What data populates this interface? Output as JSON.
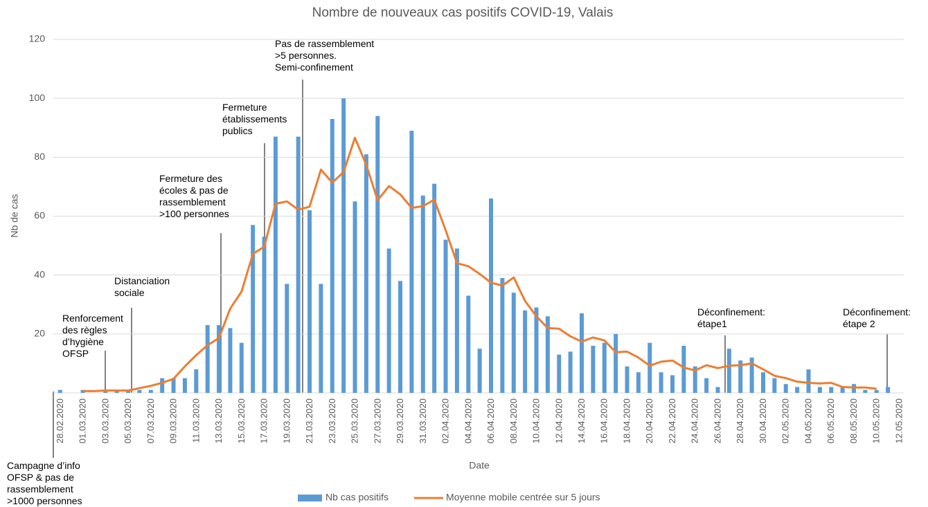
{
  "chart_data": {
    "type": "bar",
    "title": "Nombre de nouveaux cas positifs COVID-19, Valais",
    "x_label": "Date",
    "y_label": "Nb de cas",
    "categories": [
      "28.02.2020",
      null,
      "01.03.2020",
      null,
      "03.03.2020",
      null,
      "05.03.2020",
      null,
      "07.03.2020",
      null,
      "09.03.2020",
      null,
      "11.03.2020",
      null,
      "13.03.2020",
      null,
      "15.03.2020",
      null,
      "17.03.2020",
      null,
      "19.03.2020",
      null,
      "21.03.2020",
      null,
      "23.03.2020",
      null,
      "25.03.2020",
      null,
      "27.03.2020",
      null,
      "29.03.2020",
      null,
      "31.03.2020",
      null,
      "02.04.2020",
      null,
      "04.04.2020",
      null,
      "06.04.2020",
      null,
      "08.04.2020",
      null,
      "10.04.2020",
      null,
      "12.04.2020",
      null,
      "14.04.2020",
      null,
      "16.04.2020",
      null,
      "18.04.2020",
      null,
      "20.04.2020",
      null,
      "22.04.2020",
      null,
      "24.04.2020",
      null,
      "26.04.2020",
      null,
      "28.04.2020",
      null,
      "30.04.2020",
      null,
      "02.05.2020",
      null,
      "04.05.2020",
      null,
      "06.05.2020",
      null,
      "08.05.2020",
      null,
      "10.05.2020",
      null,
      "12.05.2020"
    ],
    "series": [
      {
        "name": "Nb cas positifs",
        "type": "bar",
        "color": "#5b9bd5",
        "values": [
          1,
          0,
          1,
          0,
          1,
          1,
          1,
          1,
          1,
          5,
          5,
          5,
          8,
          23,
          23,
          22,
          17,
          57,
          53,
          87,
          37,
          87,
          62,
          37,
          93,
          100,
          65,
          81,
          94,
          49,
          38,
          89,
          67,
          71,
          52,
          49,
          33,
          15,
          66,
          39,
          34,
          28,
          29,
          26,
          13,
          14,
          27,
          16,
          17,
          20,
          9,
          7,
          17,
          7,
          6,
          16,
          9,
          5,
          2,
          15,
          11,
          12,
          7,
          5,
          3,
          2,
          8,
          2,
          2,
          2,
          3,
          1,
          1,
          2,
          0
        ]
      },
      {
        "name": "Moyenne mobile centrée sur 5 jours",
        "type": "line",
        "color": "#ed7d31",
        "values": [
          null,
          null,
          0.6,
          0.6,
          0.8,
          0.8,
          0.8,
          1.6,
          2.4,
          3.4,
          4.8,
          9,
          12.8,
          16.2,
          18.6,
          28.6,
          34.4,
          47.2,
          49.6,
          64.2,
          65,
          62.2,
          63.2,
          75.8,
          71.4,
          75,
          86.6,
          77.4,
          65.4,
          70.2,
          67.4,
          62.8,
          63.4,
          65.6,
          55.2,
          44,
          43,
          40.4,
          37.4,
          36.4,
          39.2,
          31.2,
          26,
          22,
          21.8,
          19.2,
          17.4,
          18.8,
          17.8,
          13.8,
          14,
          12,
          9.2,
          10.6,
          11,
          8.6,
          7.6,
          9.4,
          8.4,
          9.2,
          9.4,
          10,
          8,
          5.8,
          5,
          3.8,
          3.4,
          3.2,
          3.4,
          2,
          1.8,
          1.8,
          1.4,
          null,
          null
        ]
      }
    ],
    "ylim": [
      0,
      120
    ],
    "yticks": [
      20,
      40,
      60,
      80,
      100,
      120
    ],
    "grid": true,
    "legend": "bottom",
    "annotations": [
      "Campagne d’info\nOFSP & pas de\nrassemblement\n>1000 personnes",
      "Renforcement\ndes règles\nd’hygiène\nOFSP",
      "Distanciation\nsociale",
      "Fermeture des\nécoles & pas de\nrassemblement\n>100 personnes",
      "Fermeture\nétablissements\npublics",
      "Pas de rassemblement\n>5 personnes.\nSemi-confinement",
      "Déconfinement:\nétape1",
      "Déconfinement:\nétape 2"
    ]
  }
}
